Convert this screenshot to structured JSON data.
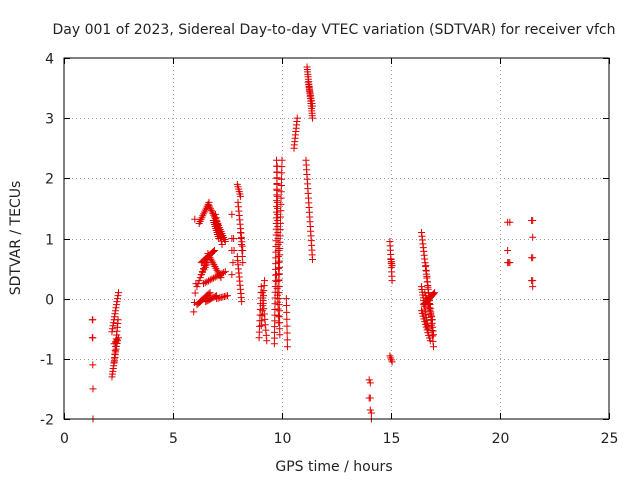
{
  "chart_data": {
    "type": "scatter",
    "title": "Day 001 of 2023, Sidereal Day-to-day VTEC variation (SDTVAR) for receiver vfch",
    "xlabel": "GPS time / hours",
    "ylabel": "SDTVAR / TECUs",
    "xlim": [
      0,
      25
    ],
    "ylim": [
      -2,
      4
    ],
    "xticks": [
      0,
      5,
      10,
      15,
      20,
      25
    ],
    "yticks": [
      -2,
      -1,
      0,
      1,
      2,
      3,
      4
    ],
    "grid": true,
    "marker": "plus",
    "marker_color": "#e00000",
    "segments": [
      {
        "x0": 1.3,
        "x1": 1.32,
        "y0": -0.35,
        "y1": -0.35,
        "n": 2
      },
      {
        "x0": 1.3,
        "x1": 1.32,
        "y0": -0.65,
        "y1": -0.65,
        "n": 2
      },
      {
        "x0": 1.32,
        "x1": 1.32,
        "y0": -1.1,
        "y1": -1.1,
        "n": 1
      },
      {
        "x0": 1.33,
        "x1": 1.33,
        "y0": -1.5,
        "y1": -1.5,
        "n": 1
      },
      {
        "x0": 1.33,
        "x1": 1.33,
        "y0": -2.0,
        "y1": -2.0,
        "n": 1
      },
      {
        "x0": 2.2,
        "x1": 2.45,
        "y0": -1.3,
        "y1": -0.7,
        "n": 14
      },
      {
        "x0": 2.3,
        "x1": 2.48,
        "y0": -1.05,
        "y1": -0.35,
        "n": 12
      },
      {
        "x0": 2.2,
        "x1": 2.5,
        "y0": -0.55,
        "y1": 0.1,
        "n": 14
      },
      {
        "x0": 2.3,
        "x1": 2.5,
        "y0": -0.75,
        "y1": -0.65,
        "n": 4
      },
      {
        "x0": 5.95,
        "x1": 6.05,
        "y0": -0.22,
        "y1": 0.25,
        "n": 4
      },
      {
        "x0": 6.0,
        "x1": 6.0,
        "y0": 1.32,
        "y1": 1.32,
        "n": 1
      },
      {
        "x0": 6.2,
        "x1": 6.65,
        "y0": 1.25,
        "y1": 1.6,
        "n": 12
      },
      {
        "x0": 6.65,
        "x1": 7.05,
        "y0": 1.55,
        "y1": 1.25,
        "n": 12
      },
      {
        "x0": 6.85,
        "x1": 7.1,
        "y0": 1.3,
        "y1": 1.0,
        "n": 10
      },
      {
        "x0": 6.95,
        "x1": 7.25,
        "y0": 1.4,
        "y1": 0.9,
        "n": 10
      },
      {
        "x0": 7.05,
        "x1": 7.4,
        "y0": 1.25,
        "y1": 0.95,
        "n": 10
      },
      {
        "x0": 6.1,
        "x1": 6.55,
        "y0": 0.2,
        "y1": 0.65,
        "n": 10
      },
      {
        "x0": 6.3,
        "x1": 6.9,
        "y0": 0.6,
        "y1": 0.8,
        "n": 14
      },
      {
        "x0": 6.6,
        "x1": 7.2,
        "y0": 0.75,
        "y1": 0.35,
        "n": 14
      },
      {
        "x0": 6.4,
        "x1": 7.4,
        "y0": 0.25,
        "y1": 0.45,
        "n": 14
      },
      {
        "x0": 6.1,
        "x1": 6.7,
        "y0": -0.1,
        "y1": 0.1,
        "n": 12
      },
      {
        "x0": 6.5,
        "x1": 7.0,
        "y0": -0.05,
        "y1": 0.05,
        "n": 10
      },
      {
        "x0": 7.0,
        "x1": 7.5,
        "y0": 0.0,
        "y1": 0.05,
        "n": 8
      },
      {
        "x0": 6.3,
        "x1": 6.6,
        "y0": 0.4,
        "y1": 0.6,
        "n": 6
      },
      {
        "x0": 7.7,
        "x1": 7.75,
        "y0": 1.4,
        "y1": 1.4,
        "n": 1
      },
      {
        "x0": 7.7,
        "x1": 7.78,
        "y0": 1.0,
        "y1": 1.0,
        "n": 2
      },
      {
        "x0": 7.7,
        "x1": 7.8,
        "y0": 0.8,
        "y1": 0.8,
        "n": 2
      },
      {
        "x0": 7.75,
        "x1": 7.8,
        "y0": 0.6,
        "y1": 0.6,
        "n": 1
      },
      {
        "x0": 7.7,
        "x1": 7.75,
        "y0": 0.4,
        "y1": 0.4,
        "n": 1
      },
      {
        "x0": 7.95,
        "x1": 8.1,
        "y0": 1.9,
        "y1": 1.7,
        "n": 6
      },
      {
        "x0": 7.98,
        "x1": 8.2,
        "y0": 1.6,
        "y1": 0.8,
        "n": 12
      },
      {
        "x0": 7.95,
        "x1": 8.15,
        "y0": 0.7,
        "y1": -0.05,
        "n": 12
      },
      {
        "x0": 8.1,
        "x1": 8.2,
        "y0": 1.1,
        "y1": 0.6,
        "n": 6
      },
      {
        "x0": 8.95,
        "x1": 9.05,
        "y0": -0.65,
        "y1": 0.2,
        "n": 10
      },
      {
        "x0": 9.05,
        "x1": 9.2,
        "y0": -0.45,
        "y1": 0.3,
        "n": 10
      },
      {
        "x0": 9.1,
        "x1": 9.3,
        "y0": 0.1,
        "y1": -0.7,
        "n": 10
      },
      {
        "x0": 9.65,
        "x1": 9.78,
        "y0": -0.75,
        "y1": 2.2,
        "n": 32
      },
      {
        "x0": 9.75,
        "x1": 9.9,
        "y0": 2.3,
        "y1": -0.6,
        "n": 30
      },
      {
        "x0": 9.85,
        "x1": 10.0,
        "y0": 0.1,
        "y1": 2.3,
        "n": 22
      },
      {
        "x0": 9.75,
        "x1": 9.85,
        "y0": 0.4,
        "y1": -0.4,
        "n": 8
      },
      {
        "x0": 10.2,
        "x1": 10.25,
        "y0": 0.0,
        "y1": -0.8,
        "n": 8
      },
      {
        "x0": 10.55,
        "x1": 10.7,
        "y0": 2.5,
        "y1": 3.0,
        "n": 10
      },
      {
        "x0": 11.15,
        "x1": 11.4,
        "y0": 3.85,
        "y1": 3.0,
        "n": 22
      },
      {
        "x0": 11.2,
        "x1": 11.4,
        "y0": 3.6,
        "y1": 3.2,
        "n": 10
      },
      {
        "x0": 11.1,
        "x1": 11.4,
        "y0": 2.3,
        "y1": 0.65,
        "n": 22
      },
      {
        "x0": 14.0,
        "x1": 14.05,
        "y0": -1.35,
        "y1": -1.4,
        "n": 2
      },
      {
        "x0": 14.0,
        "x1": 14.05,
        "y0": -1.65,
        "y1": -1.65,
        "n": 2
      },
      {
        "x0": 14.05,
        "x1": 14.1,
        "y0": -1.85,
        "y1": -1.9,
        "n": 2
      },
      {
        "x0": 14.1,
        "x1": 14.1,
        "y0": -2.0,
        "y1": -2.0,
        "n": 1
      },
      {
        "x0": 14.95,
        "x1": 15.05,
        "y0": 0.95,
        "y1": 0.3,
        "n": 10
      },
      {
        "x0": 15.0,
        "x1": 15.05,
        "y0": 0.65,
        "y1": 0.55,
        "n": 4
      },
      {
        "x0": 14.95,
        "x1": 15.05,
        "y0": -0.95,
        "y1": -1.05,
        "n": 4
      },
      {
        "x0": 16.4,
        "x1": 16.95,
        "y0": 1.1,
        "y1": -0.6,
        "n": 28
      },
      {
        "x0": 16.6,
        "x1": 16.95,
        "y0": 0.55,
        "y1": -0.8,
        "n": 16
      },
      {
        "x0": 16.4,
        "x1": 16.7,
        "y0": 0.2,
        "y1": -0.5,
        "n": 16
      },
      {
        "x0": 16.5,
        "x1": 17.0,
        "y0": -0.1,
        "y1": 0.1,
        "n": 14
      },
      {
        "x0": 16.4,
        "x1": 16.8,
        "y0": -0.2,
        "y1": -0.7,
        "n": 12
      },
      {
        "x0": 16.55,
        "x1": 16.9,
        "y0": 0.1,
        "y1": -0.35,
        "n": 10
      },
      {
        "x0": 20.35,
        "x1": 20.45,
        "y0": 1.27,
        "y1": 1.27,
        "n": 2
      },
      {
        "x0": 20.35,
        "x1": 20.4,
        "y0": 0.8,
        "y1": 0.8,
        "n": 1
      },
      {
        "x0": 20.35,
        "x1": 20.45,
        "y0": 0.6,
        "y1": 0.6,
        "n": 3
      },
      {
        "x0": 21.45,
        "x1": 21.5,
        "y0": 1.3,
        "y1": 1.3,
        "n": 2
      },
      {
        "x0": 21.5,
        "x1": 21.5,
        "y0": 1.02,
        "y1": 1.02,
        "n": 1
      },
      {
        "x0": 21.45,
        "x1": 21.5,
        "y0": 0.68,
        "y1": 0.68,
        "n": 2
      },
      {
        "x0": 21.45,
        "x1": 21.5,
        "y0": 0.3,
        "y1": 0.3,
        "n": 2
      },
      {
        "x0": 21.5,
        "x1": 21.5,
        "y0": 0.2,
        "y1": 0.2,
        "n": 1
      }
    ]
  }
}
